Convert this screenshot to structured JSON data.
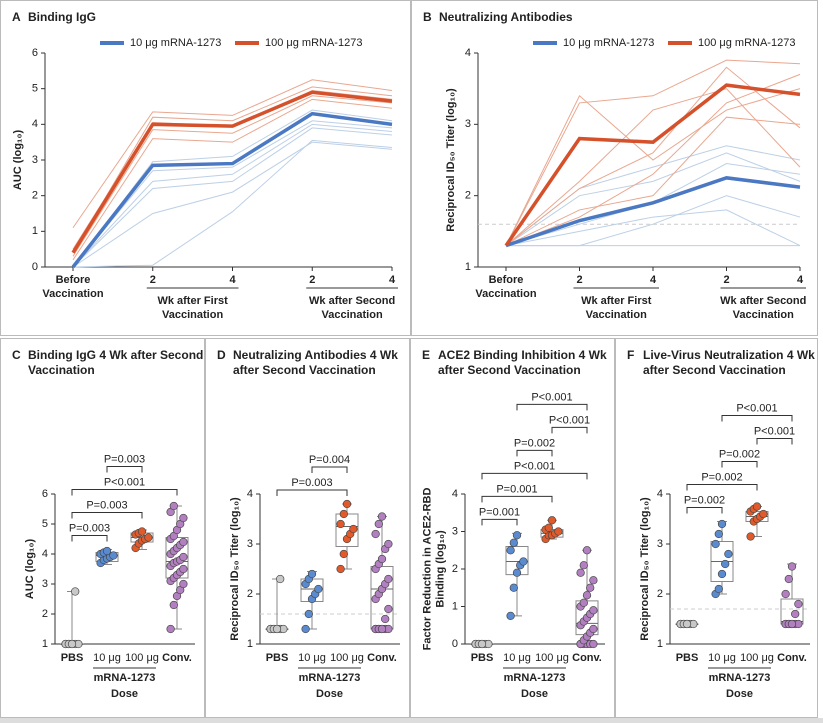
{
  "chart_data": [
    {
      "type": "line",
      "label": "A",
      "title": [
        "Binding IgG"
      ],
      "y_label": [
        "AUC (log₁₀)"
      ],
      "categories": [
        [
          "Before",
          "Vaccination"
        ],
        [
          "2"
        ],
        [
          "4"
        ],
        [
          "2"
        ],
        [
          "4"
        ]
      ],
      "x_groups": [
        {
          "label": [
            "Wk after First",
            "Vaccination"
          ],
          "span": [
            1,
            2
          ]
        },
        {
          "label": [
            "Wk after Second",
            "Vaccination"
          ],
          "span": [
            3,
            4
          ]
        }
      ],
      "ylim": [
        0,
        6
      ],
      "yticks": [
        0,
        1,
        2,
        3,
        4,
        5,
        6
      ],
      "series": [
        {
          "color": "#bcd0e6",
          "values": [
            0,
            2.95,
            3.1,
            4.4,
            4.1
          ]
        },
        {
          "color": "#bcd0e6",
          "values": [
            0,
            2.7,
            2.8,
            4.1,
            3.9
          ]
        },
        {
          "color": "#bcd0e6",
          "values": [
            0,
            2.4,
            2.6,
            4.0,
            3.8
          ]
        },
        {
          "color": "#bcd0e6",
          "values": [
            0,
            2.2,
            2.4,
            3.9,
            3.7
          ]
        },
        {
          "color": "#bcd0e6",
          "values": [
            0,
            1.5,
            2.1,
            3.5,
            3.3
          ]
        },
        {
          "color": "#bcd0e6",
          "values": [
            0,
            0.05,
            1.55,
            3.55,
            3.35
          ]
        },
        {
          "color": "#e9a78f",
          "values": [
            1.1,
            4.35,
            4.25,
            5.25,
            4.95
          ]
        },
        {
          "color": "#e9a78f",
          "values": [
            0.4,
            4.2,
            4.1,
            5.05,
            4.8
          ]
        },
        {
          "color": "#e9a78f",
          "values": [
            0.3,
            3.85,
            3.75,
            4.8,
            4.6
          ]
        },
        {
          "color": "#e9a78f",
          "values": [
            0.2,
            3.6,
            3.5,
            4.7,
            4.45
          ]
        },
        {
          "color": "#e9a78f",
          "values": [
            0.5,
            4.05,
            3.95,
            4.95,
            4.7
          ]
        },
        {
          "name": "10 μg mRNA-1273",
          "color": "#4a78c2",
          "values": [
            0,
            2.85,
            2.9,
            4.3,
            4.0
          ]
        },
        {
          "name": "100 μg mRNA-1273",
          "color": "#d4512b",
          "values": [
            0.4,
            4.0,
            3.95,
            4.9,
            4.65
          ]
        }
      ]
    },
    {
      "type": "line",
      "label": "B",
      "title": [
        "Neutralizing Antibodies"
      ],
      "y_label": [
        "Reciprocal ID₅₀ Titer (log₁₀)"
      ],
      "categories": [
        [
          "Before",
          "Vaccination"
        ],
        [
          "2"
        ],
        [
          "4"
        ],
        [
          "2"
        ],
        [
          "4"
        ]
      ],
      "x_groups": [
        {
          "label": [
            "Wk after First",
            "Vaccination"
          ],
          "span": [
            1,
            2
          ]
        },
        {
          "label": [
            "Wk after Second",
            "Vaccination"
          ],
          "span": [
            3,
            4
          ]
        }
      ],
      "ylim": [
        1,
        4
      ],
      "yticks": [
        1,
        2,
        3,
        4
      ],
      "reference_line": 1.6,
      "series": [
        {
          "color": "#bcd0e6",
          "values": [
            1.3,
            1.3,
            1.3,
            1.3,
            1.3
          ]
        },
        {
          "color": "#bcd0e6",
          "values": [
            1.3,
            2.0,
            2.2,
            2.6,
            2.2
          ]
        },
        {
          "color": "#bcd0e6",
          "values": [
            1.3,
            1.6,
            1.9,
            2.45,
            2.3
          ]
        },
        {
          "color": "#bcd0e6",
          "values": [
            1.3,
            1.3,
            1.6,
            2.0,
            1.7
          ]
        },
        {
          "color": "#bcd0e6",
          "values": [
            1.3,
            2.1,
            2.4,
            2.7,
            2.5
          ]
        },
        {
          "color": "#bcd0e6",
          "values": [
            1.3,
            1.5,
            1.7,
            1.8,
            1.3
          ]
        },
        {
          "color": "#e9a78f",
          "values": [
            1.3,
            3.3,
            3.4,
            3.9,
            3.85
          ]
        },
        {
          "color": "#e9a78f",
          "values": [
            1.3,
            3.4,
            2.5,
            3.2,
            3.5
          ]
        },
        {
          "color": "#e9a78f",
          "values": [
            1.3,
            2.1,
            2.6,
            3.8,
            2.95
          ]
        },
        {
          "color": "#e9a78f",
          "values": [
            1.3,
            1.8,
            2.0,
            3.1,
            3.0
          ]
        },
        {
          "color": "#e9a78f",
          "values": [
            1.3,
            2.2,
            3.2,
            3.5,
            2.4
          ]
        },
        {
          "color": "#e9a78f",
          "values": [
            1.3,
            1.7,
            2.3,
            3.3,
            3.7
          ]
        },
        {
          "name": "10 μg mRNA-1273",
          "color": "#4a78c2",
          "values": [
            1.3,
            1.65,
            1.9,
            2.25,
            2.12
          ]
        },
        {
          "name": "100 μg mRNA-1273",
          "color": "#d4512b",
          "values": [
            1.3,
            2.8,
            2.75,
            3.55,
            3.42
          ]
        }
      ]
    },
    {
      "type": "box",
      "label": "C",
      "title": [
        "Binding IgG 4 Wk after Second",
        "Vaccination"
      ],
      "y_label": [
        "AUC (log₁₀)"
      ],
      "categories": [
        "PBS",
        "10 μg",
        "100 μg",
        "Conv."
      ],
      "x_group": {
        "label": "mRNA-1273",
        "span": [
          1,
          2
        ]
      },
      "x_label": "Dose",
      "ylim": [
        1,
        6
      ],
      "yticks": [
        1,
        2,
        3,
        4,
        5,
        6
      ],
      "groups": [
        {
          "color": "#c8c8c8",
          "points": [
            1,
            1,
            1,
            1,
            1,
            1,
            1,
            1,
            2.75
          ],
          "box": {
            "min": 1,
            "q1": 1,
            "median": 1,
            "q3": 1,
            "max": 2.75
          }
        },
        {
          "color": "#5a8bd0",
          "points": [
            3.7,
            3.8,
            3.85,
            3.9,
            3.95,
            4.0,
            4.05,
            4.1
          ],
          "box": {
            "min": 3.65,
            "q1": 3.75,
            "median": 3.95,
            "q3": 4.05,
            "max": 4.15
          }
        },
        {
          "color": "#e05a2b",
          "points": [
            4.2,
            4.35,
            4.45,
            4.5,
            4.55,
            4.65,
            4.7,
            4.75
          ],
          "box": {
            "min": 4.15,
            "q1": 4.4,
            "median": 4.55,
            "q3": 4.7,
            "max": 4.8
          }
        },
        {
          "color": "#b27fc0",
          "points": [
            1.5,
            2.3,
            2.6,
            2.8,
            3.0,
            3.1,
            3.2,
            3.3,
            3.4,
            3.5,
            3.6,
            3.7,
            3.75,
            3.8,
            3.9,
            4.0,
            4.1,
            4.2,
            4.3,
            4.4,
            4.5,
            4.6,
            4.8,
            5.0,
            5.2,
            5.4,
            5.6
          ],
          "box": {
            "min": 1.5,
            "q1": 3.2,
            "median": 3.75,
            "q3": 4.55,
            "max": 5.6
          }
        }
      ],
      "comparisons": [
        {
          "label": "P=0.003",
          "between": [
            0,
            1
          ]
        },
        {
          "label": "P=0.003",
          "between": [
            0,
            2
          ]
        },
        {
          "label": "P<0.001",
          "between": [
            0,
            3
          ]
        },
        {
          "label": "P=0.003",
          "between": [
            1,
            2
          ]
        }
      ]
    },
    {
      "type": "box",
      "label": "D",
      "title": [
        "Neutralizing Antibodies 4 Wk",
        "after Second Vaccination"
      ],
      "y_label": [
        "Reciprocal ID₅₀ Titer (log₁₀)"
      ],
      "categories": [
        "PBS",
        "10 μg",
        "100 μg",
        "Conv."
      ],
      "x_group": {
        "label": "mRNA-1273",
        "span": [
          1,
          2
        ]
      },
      "x_label": "Dose",
      "ylim": [
        1,
        4
      ],
      "yticks": [
        1,
        2,
        3,
        4
      ],
      "reference_line": 1.6,
      "groups": [
        {
          "color": "#c8c8c8",
          "points": [
            1.3,
            1.3,
            1.3,
            1.3,
            1.3,
            1.3,
            1.3,
            1.3,
            2.3
          ],
          "box": {
            "min": 1.3,
            "q1": 1.3,
            "median": 1.3,
            "q3": 1.3,
            "max": 2.3
          }
        },
        {
          "color": "#5a8bd0",
          "points": [
            1.3,
            1.6,
            1.9,
            2.0,
            2.1,
            2.2,
            2.3,
            2.4
          ],
          "box": {
            "min": 1.3,
            "q1": 1.85,
            "median": 2.1,
            "q3": 2.3,
            "max": 2.45
          }
        },
        {
          "color": "#e05a2b",
          "points": [
            2.5,
            2.8,
            3.1,
            3.2,
            3.3,
            3.4,
            3.6,
            3.8
          ],
          "box": {
            "min": 2.5,
            "q1": 2.95,
            "median": 3.35,
            "q3": 3.6,
            "max": 3.8
          }
        },
        {
          "color": "#b27fc0",
          "points": [
            1.3,
            1.3,
            1.3,
            1.3,
            1.3,
            1.3,
            1.3,
            1.3,
            1.5,
            1.7,
            1.9,
            2.0,
            2.1,
            2.2,
            2.3,
            2.5,
            2.6,
            2.7,
            2.9,
            3.0,
            3.2,
            3.4,
            3.55
          ],
          "box": {
            "min": 1.3,
            "q1": 1.3,
            "median": 2.1,
            "q3": 2.55,
            "max": 3.55
          }
        }
      ],
      "comparisons": [
        {
          "label": "P=0.003",
          "between": [
            0,
            2
          ]
        },
        {
          "label": "P=0.004",
          "between": [
            1,
            2
          ]
        }
      ]
    },
    {
      "type": "box",
      "label": "E",
      "title": [
        "ACE2 Binding Inhibition 4 Wk",
        "after Second Vaccination"
      ],
      "y_label": [
        "Factor Reduction in ACE2-RBD",
        "Binding (log₁₀)"
      ],
      "categories": [
        "PBS",
        "10 μg",
        "100 μg",
        "Conv."
      ],
      "x_group": {
        "label": "mRNA-1273",
        "span": [
          1,
          2
        ]
      },
      "x_label": "Dose",
      "ylim": [
        0,
        4
      ],
      "yticks": [
        0,
        1,
        2,
        3,
        4
      ],
      "groups": [
        {
          "color": "#c8c8c8",
          "points": [
            0,
            0,
            0,
            0,
            0,
            0,
            0,
            0
          ],
          "box": {
            "min": 0,
            "q1": 0,
            "median": 0,
            "q3": 0,
            "max": 0
          }
        },
        {
          "color": "#5a8bd0",
          "points": [
            0.75,
            1.5,
            1.9,
            2.1,
            2.2,
            2.5,
            2.7,
            2.9
          ],
          "box": {
            "min": 0.75,
            "q1": 1.85,
            "median": 2.2,
            "q3": 2.6,
            "max": 2.95
          }
        },
        {
          "color": "#e05a2b",
          "points": [
            2.8,
            2.9,
            2.9,
            2.95,
            3.0,
            3.05,
            3.1,
            3.3
          ],
          "box": {
            "min": 2.8,
            "q1": 2.85,
            "median": 2.95,
            "q3": 3.05,
            "max": 3.3
          }
        },
        {
          "color": "#b27fc0",
          "points": [
            0,
            0,
            0,
            0,
            0,
            0,
            0.1,
            0.2,
            0.3,
            0.4,
            0.5,
            0.6,
            0.7,
            0.8,
            0.9,
            1.0,
            1.1,
            1.3,
            1.5,
            1.7,
            1.9,
            2.1,
            2.5
          ],
          "box": {
            "min": 0,
            "q1": 0.25,
            "median": 0.55,
            "q3": 1.15,
            "max": 2.5
          }
        }
      ],
      "comparisons": [
        {
          "label": "P=0.001",
          "between": [
            0,
            1
          ]
        },
        {
          "label": "P=0.001",
          "between": [
            0,
            2
          ]
        },
        {
          "label": "P<0.001",
          "between": [
            0,
            3
          ]
        },
        {
          "label": "P=0.002",
          "between": [
            1,
            2
          ]
        },
        {
          "label": "P<0.001",
          "between": [
            2,
            3
          ]
        },
        {
          "label": "P<0.001",
          "between": [
            1,
            3
          ]
        }
      ]
    },
    {
      "type": "box",
      "label": "F",
      "title": [
        "Live-Virus Neutralization 4 Wk",
        "after Second Vaccination"
      ],
      "y_label": [
        "Reciprocal ID₅₀ Titer (log₁₀)"
      ],
      "categories": [
        "PBS",
        "10 μg",
        "100 μg",
        "Conv."
      ],
      "x_group": {
        "label": "mRNA-1273",
        "span": [
          1,
          2
        ]
      },
      "x_label": "Dose",
      "ylim": [
        1,
        4
      ],
      "yticks": [
        1,
        2,
        3,
        4
      ],
      "reference_line": 1.7,
      "groups": [
        {
          "color": "#c8c8c8",
          "points": [
            1.4,
            1.4,
            1.4,
            1.4,
            1.4,
            1.4,
            1.4,
            1.4
          ],
          "box": {
            "min": 1.4,
            "q1": 1.4,
            "median": 1.4,
            "q3": 1.4,
            "max": 1.4
          }
        },
        {
          "color": "#5a8bd0",
          "points": [
            2.0,
            2.1,
            2.4,
            2.6,
            2.8,
            3.0,
            3.2,
            3.4
          ],
          "box": {
            "min": 2.0,
            "q1": 2.25,
            "median": 2.65,
            "q3": 3.05,
            "max": 3.45
          }
        },
        {
          "color": "#e05a2b",
          "points": [
            3.15,
            3.45,
            3.5,
            3.55,
            3.6,
            3.65,
            3.7,
            3.75
          ],
          "box": {
            "min": 3.15,
            "q1": 3.45,
            "median": 3.55,
            "q3": 3.65,
            "max": 3.75
          }
        },
        {
          "color": "#b27fc0",
          "points": [
            1.4,
            1.4,
            1.4,
            1.4,
            1.4,
            1.4,
            1.4,
            1.4,
            1.6,
            1.8,
            2.0,
            2.3,
            2.55
          ],
          "box": {
            "min": 1.4,
            "q1": 1.4,
            "median": 1.45,
            "q3": 1.9,
            "max": 2.6
          }
        }
      ],
      "comparisons": [
        {
          "label": "P=0.002",
          "between": [
            0,
            1
          ]
        },
        {
          "label": "P=0.002",
          "between": [
            0,
            2
          ]
        },
        {
          "label": "P=0.002",
          "between": [
            1,
            2
          ]
        },
        {
          "label": "P<0.001",
          "between": [
            2,
            3
          ]
        },
        {
          "label": "P<0.001",
          "between": [
            1,
            3
          ]
        }
      ]
    }
  ]
}
